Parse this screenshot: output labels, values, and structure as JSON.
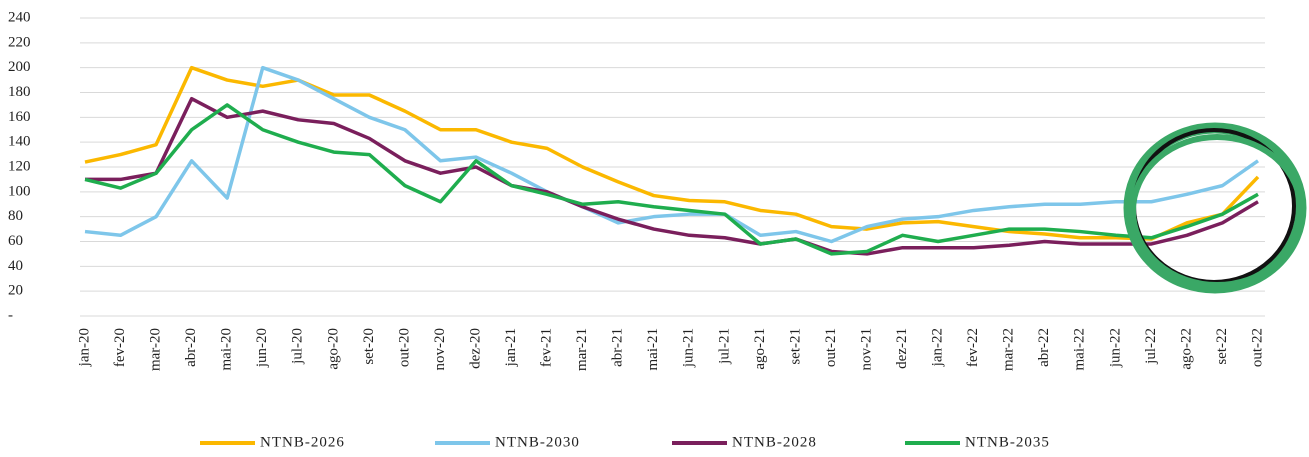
{
  "chart_data": {
    "type": "line",
    "categories": [
      "jan-20",
      "fev-20",
      "mar-20",
      "abr-20",
      "mai-20",
      "jun-20",
      "jul-20",
      "ago-20",
      "set-20",
      "out-20",
      "nov-20",
      "dez-20",
      "jan-21",
      "fev-21",
      "mar-21",
      "abr-21",
      "mai-21",
      "jun-21",
      "jul-21",
      "ago-21",
      "set-21",
      "out-21",
      "nov-21",
      "dez-21",
      "jan-22",
      "fev-22",
      "mar-22",
      "abr-22",
      "mai-22",
      "jun-22",
      "jul-22",
      "ago-22",
      "set-22",
      "out-22"
    ],
    "ylim": [
      0,
      240
    ],
    "yticks": [
      {
        "value": 0,
        "label": "-"
      },
      20,
      40,
      60,
      80,
      100,
      120,
      140,
      160,
      180,
      200,
      220,
      240
    ],
    "grid": true,
    "legend": "bottom",
    "series": [
      {
        "name": "NTNB-2026",
        "color": "#fbb800",
        "values": [
          124,
          130,
          138,
          200,
          190,
          185,
          190,
          178,
          178,
          165,
          150,
          150,
          140,
          135,
          120,
          108,
          97,
          93,
          92,
          85,
          82,
          72,
          70,
          75,
          76,
          72,
          68,
          66,
          63,
          63,
          62,
          75,
          82,
          112
        ]
      },
      {
        "name": "NTNB-2030",
        "color": "#7ec6ea",
        "values": [
          68,
          65,
          80,
          125,
          95,
          200,
          190,
          175,
          160,
          150,
          125,
          128,
          115,
          100,
          88,
          75,
          80,
          82,
          82,
          65,
          68,
          60,
          72,
          78,
          80,
          85,
          88,
          90,
          90,
          92,
          92,
          98,
          105,
          125
        ]
      },
      {
        "name": "NTNB-2028",
        "color": "#7a1f5c",
        "values": [
          110,
          110,
          115,
          175,
          160,
          165,
          158,
          155,
          143,
          125,
          115,
          120,
          105,
          100,
          88,
          78,
          70,
          65,
          63,
          58,
          62,
          52,
          50,
          55,
          55,
          55,
          57,
          60,
          58,
          58,
          58,
          65,
          75,
          92
        ]
      },
      {
        "name": "NTNB-2035",
        "color": "#1fad4e",
        "values": [
          110,
          103,
          115,
          150,
          170,
          150,
          140,
          132,
          130,
          105,
          92,
          125,
          105,
          98,
          90,
          92,
          88,
          85,
          82,
          58,
          62,
          50,
          52,
          65,
          60,
          65,
          70,
          70,
          68,
          65,
          63,
          72,
          82,
          98
        ]
      }
    ]
  }
}
